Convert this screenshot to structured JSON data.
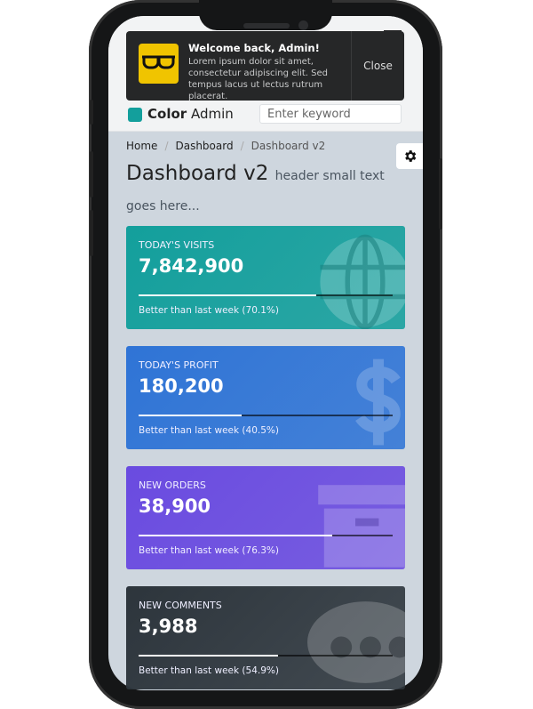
{
  "header": {
    "logo_bold": "Color",
    "logo_light": " Admin",
    "search_placeholder": "Enter keyword"
  },
  "notification": {
    "title": "Welcome back, Admin!",
    "text": "Lorem ipsum dolor sit amet, consectetur adipiscing elit. Sed tempus lacus ut lectus rutrum placerat.",
    "close_label": "Close",
    "icon": "glasses-icon"
  },
  "breadcrumb": [
    "Home",
    "Dashboard",
    "Dashboard v2"
  ],
  "page": {
    "title": "Dashboard v2",
    "subtitle": "header small text goes here..."
  },
  "cards": [
    {
      "label": "TODAY'S VISITS",
      "value": "7,842,900",
      "desc": "Better than last week (70.1%)",
      "progress": 70.1,
      "color": "#139f9c",
      "icon": "globe-icon"
    },
    {
      "label": "TODAY'S PROFIT",
      "value": "180,200",
      "desc": "Better than last week (40.5%)",
      "progress": 40.5,
      "color": "#2f74d6",
      "icon": "dollar-icon"
    },
    {
      "label": "NEW ORDERS",
      "value": "38,900",
      "desc": "Better than last week (76.3%)",
      "progress": 76.3,
      "color": "#6a4be0",
      "icon": "archive-icon"
    },
    {
      "label": "NEW COMMENTS",
      "value": "3,988",
      "desc": "Better than last week (54.9%)",
      "progress": 54.9,
      "color": "#2d353c",
      "icon": "comments-icon"
    }
  ]
}
